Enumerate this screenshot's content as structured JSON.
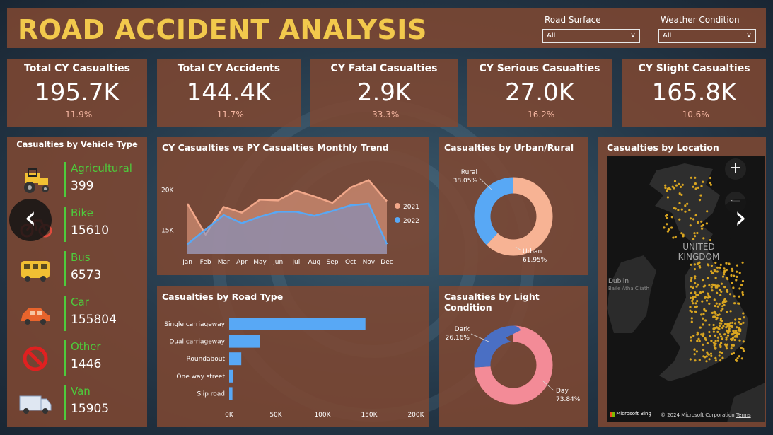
{
  "header": {
    "title": "ROAD ACCIDENT ANALYSIS"
  },
  "slicers": [
    {
      "label": "Road Surface",
      "value": "All"
    },
    {
      "label": "Weather Condition",
      "value": "All"
    }
  ],
  "kpis": [
    {
      "title": "Total CY Casualties",
      "value": "195.7K",
      "delta": "-11.9%"
    },
    {
      "title": "Total CY Accidents",
      "value": "144.4K",
      "delta": "-11.7%"
    },
    {
      "title": "CY Fatal Casualties",
      "value": "2.9K",
      "delta": "-33.3%"
    },
    {
      "title": "CY Serious Casualties",
      "value": "27.0K",
      "delta": "-16.2%"
    },
    {
      "title": "CY Slight Casualties",
      "value": "165.8K",
      "delta": "-10.6%"
    }
  ],
  "vehicle_panel": {
    "title": "Casualties by Vehicle Type",
    "items": [
      {
        "name": "Agricultural",
        "value": "399",
        "icon": "tractor-icon"
      },
      {
        "name": "Bike",
        "value": "15610",
        "icon": "bike-icon"
      },
      {
        "name": "Bus",
        "value": "6573",
        "icon": "bus-icon"
      },
      {
        "name": "Car",
        "value": "155804",
        "icon": "car-icon"
      },
      {
        "name": "Other",
        "value": "1446",
        "icon": "no-entry-icon"
      },
      {
        "name": "Van",
        "value": "15905",
        "icon": "van-icon"
      }
    ]
  },
  "map_panel": {
    "title": "Casualties by Location",
    "labels": {
      "country_line1": "UNITED",
      "country_line2": "KINGDOM",
      "dublin": "Dublin",
      "dublin_irish": "Baile Átha Cliath"
    },
    "attribution": {
      "bing": "Microsoft Bing",
      "copyright": "© 2024 Microsoft Corporation",
      "terms": "Terms"
    },
    "zoom_in": "+",
    "zoom_out": "−"
  },
  "nav": {
    "prev": "‹",
    "next": "›"
  },
  "colors": {
    "title": "#f2c94c",
    "panel": "#804832",
    "py_2021": "#f2a88a",
    "cy_2022": "#58a8f5",
    "urban": "#f7b394",
    "rural": "#58a8f5",
    "day": "#f38b97",
    "dark": "#4a6fc4",
    "road_bar": "#58a8f5",
    "vehicle_accent": "#4ecb3c"
  },
  "chart_data": [
    {
      "type": "area",
      "title": "CY Casualties vs PY Casualties Monthly Trend",
      "categories": [
        "Jan",
        "Feb",
        "Mar",
        "Apr",
        "May",
        "Jun",
        "Jul",
        "Aug",
        "Sep",
        "Oct",
        "Nov",
        "Dec"
      ],
      "y_ticks": [
        "15K",
        "20K"
      ],
      "ylim": [
        12000,
        23000
      ],
      "legend_position": "right",
      "series": [
        {
          "name": "2021",
          "values": [
            18200,
            14400,
            17800,
            17100,
            18700,
            18600,
            19800,
            19100,
            18300,
            20200,
            21100,
            18500
          ]
        },
        {
          "name": "2022",
          "values": [
            13200,
            15000,
            16800,
            15800,
            16600,
            17200,
            17200,
            16700,
            17300,
            18000,
            18200,
            13200
          ]
        }
      ]
    },
    {
      "type": "pie",
      "title": "Casualties by Urban/Rural",
      "labels": [
        "Urban",
        "Rural"
      ],
      "values": [
        61.95,
        38.05
      ],
      "value_labels": [
        "61.95%",
        "38.05%"
      ]
    },
    {
      "type": "bar",
      "title": "Casualties by Road Type",
      "orientation": "horizontal",
      "categories": [
        "Single carriageway",
        "Dual carriageway",
        "Roundabout",
        "One way street",
        "Slip road"
      ],
      "values": [
        146000,
        33000,
        13000,
        4000,
        3500
      ],
      "x_ticks": [
        "0K",
        "50K",
        "100K",
        "150K",
        "200K"
      ],
      "xlim": [
        0,
        200000
      ]
    },
    {
      "type": "pie",
      "title": "Casualties by Light Condition",
      "labels": [
        "Day",
        "Dark"
      ],
      "values": [
        73.84,
        26.16
      ],
      "value_labels": [
        "73.84%",
        "26.16%"
      ]
    }
  ]
}
